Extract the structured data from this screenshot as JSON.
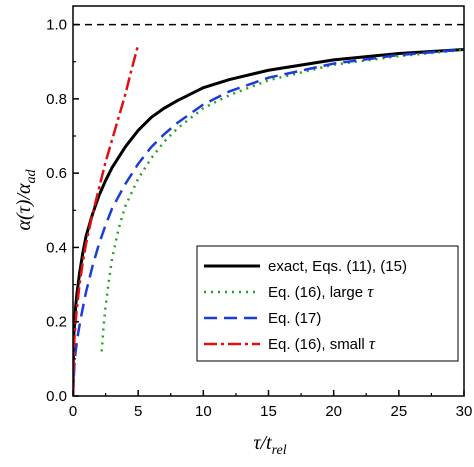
{
  "chart_data": {
    "type": "line",
    "xlabel": {
      "main": "τ/t",
      "sub": "rel"
    },
    "ylabel": {
      "main": "α(τ)/α",
      "sub": "ad"
    },
    "xlim": [
      0,
      30
    ],
    "ylim": [
      0,
      1.05
    ],
    "xticks": [
      0,
      5,
      10,
      15,
      20,
      25,
      30
    ],
    "yticks": [
      0.0,
      0.2,
      0.4,
      0.6,
      0.8,
      1.0
    ],
    "xtick_labels": [
      "0",
      "5",
      "10",
      "15",
      "20",
      "25",
      "30"
    ],
    "ytick_labels": [
      "0.0",
      "0.2",
      "0.4",
      "0.6",
      "0.8",
      "1.0"
    ],
    "reference_line": {
      "y": 1.0,
      "style": "dashed",
      "color": "#000000"
    },
    "legend_position": "lower-right",
    "series": [
      {
        "name": "exact, Eqs. (11), (15)",
        "legend_text": "exact, Eqs. (11), (15)",
        "legend_tau": "",
        "color": "#000000",
        "dash": "",
        "width": 3,
        "x": [
          0,
          0.05,
          0.1,
          0.2,
          0.3,
          0.5,
          0.75,
          1,
          1.5,
          2,
          2.5,
          3,
          4,
          5,
          6,
          7,
          8,
          10,
          12,
          15,
          20,
          25,
          30
        ],
        "y": [
          0,
          0.158,
          0.182,
          0.24,
          0.275,
          0.33,
          0.385,
          0.43,
          0.49,
          0.54,
          0.58,
          0.615,
          0.67,
          0.715,
          0.75,
          0.775,
          0.795,
          0.83,
          0.852,
          0.877,
          0.905,
          0.922,
          0.933
        ]
      },
      {
        "name": "Eq. (16), large τ",
        "legend_text": "Eq. (16), large ",
        "legend_tau": "τ",
        "color": "#22a422",
        "dash": "2 5",
        "width": 2.5,
        "x": [
          2.2,
          2.35,
          2.5,
          2.75,
          3,
          3.5,
          4,
          5,
          6,
          7,
          8,
          10,
          12,
          15,
          20,
          25,
          30
        ],
        "y": [
          0.12,
          0.19,
          0.24,
          0.31,
          0.37,
          0.45,
          0.51,
          0.585,
          0.64,
          0.685,
          0.72,
          0.775,
          0.81,
          0.85,
          0.892,
          0.915,
          0.932
        ]
      },
      {
        "name": "Eq. (17)",
        "legend_text": "Eq. (17)",
        "legend_tau": "",
        "color": "#1a3cd8",
        "dash": "13 7",
        "width": 2.5,
        "x": [
          0,
          0.1,
          0.2,
          0.4,
          0.6,
          1,
          1.5,
          2,
          2.5,
          3,
          4,
          5,
          6,
          7,
          8,
          10,
          12,
          15,
          20,
          25,
          30
        ],
        "y": [
          0,
          0.08,
          0.12,
          0.17,
          0.21,
          0.28,
          0.35,
          0.41,
          0.46,
          0.505,
          0.57,
          0.625,
          0.67,
          0.705,
          0.735,
          0.785,
          0.82,
          0.857,
          0.895,
          0.918,
          0.933
        ]
      },
      {
        "name": "Eq. (16), small τ",
        "legend_text": "Eq. (16), small ",
        "legend_tau": "τ",
        "color": "#e01010",
        "dash": "13 4 3 4",
        "width": 2.5,
        "x": [
          0,
          0.1,
          0.25,
          0.5,
          0.75,
          1,
          1.5,
          2,
          2.5,
          3,
          3.5,
          4,
          4.5,
          5
        ],
        "y": [
          0,
          0.15,
          0.22,
          0.3,
          0.36,
          0.41,
          0.49,
          0.56,
          0.63,
          0.69,
          0.75,
          0.81,
          0.88,
          0.945
        ]
      }
    ]
  }
}
